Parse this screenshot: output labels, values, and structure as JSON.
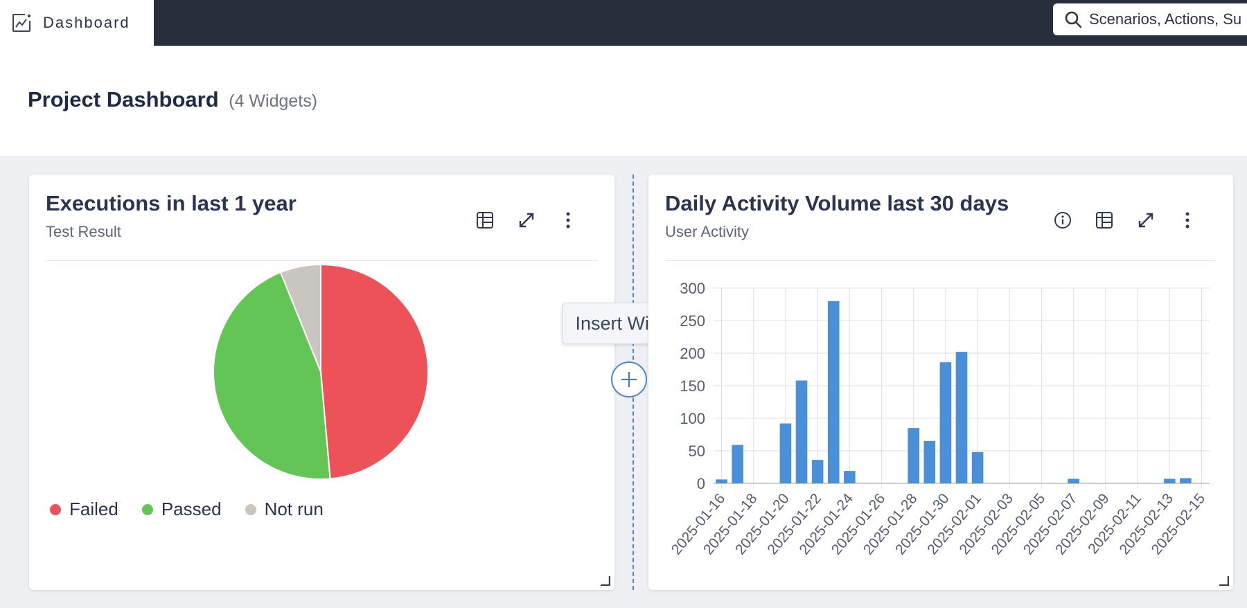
{
  "topbar": {
    "brand_label": "Dashboard",
    "brand_icon": "chart-line-icon",
    "search_placeholder": "Scenarios, Actions, Su"
  },
  "header": {
    "title": "Project Dashboard",
    "widget_count": "(4 Widgets)"
  },
  "widgets": [
    {
      "title": "Executions in last 1 year",
      "subtitle": "Test Result",
      "actions": [
        "table-icon",
        "expand-icon",
        "more-vertical-icon"
      ]
    },
    {
      "title": "Daily Activity Volume last 30 days",
      "subtitle": "User Activity",
      "actions": [
        "info-icon",
        "table-icon",
        "expand-icon",
        "more-vertical-icon"
      ]
    }
  ],
  "insert_widget": {
    "tooltip": "Insert Widget"
  },
  "colors": {
    "failed": "#ec5257",
    "passed": "#62c555",
    "not_run": "#c9c6c1",
    "bar": "#4a90d9",
    "accent": "#4a84d8"
  },
  "chart_data": [
    {
      "type": "pie",
      "legend": [
        "Failed",
        "Passed",
        "Not run"
      ],
      "series": [
        {
          "name": "Failed",
          "value": 48.6
        },
        {
          "name": "Passed",
          "value": 45.3
        },
        {
          "name": "Not run",
          "value": 6.1
        }
      ],
      "legend_position": "bottom-left"
    },
    {
      "type": "bar",
      "categories": [
        "2025-01-16",
        "2025-01-17",
        "2025-01-18",
        "2025-01-19",
        "2025-01-20",
        "2025-01-21",
        "2025-01-22",
        "2025-01-23",
        "2025-01-24",
        "2025-01-25",
        "2025-01-26",
        "2025-01-27",
        "2025-01-28",
        "2025-01-29",
        "2025-01-30",
        "2025-01-31",
        "2025-02-01",
        "2025-02-02",
        "2025-02-03",
        "2025-02-04",
        "2025-02-05",
        "2025-02-06",
        "2025-02-07",
        "2025-02-08",
        "2025-02-09",
        "2025-02-10",
        "2025-02-11",
        "2025-02-12",
        "2025-02-13",
        "2025-02-14",
        "2025-02-15"
      ],
      "values": [
        6,
        59,
        0,
        0,
        92,
        158,
        36,
        280,
        19,
        0,
        0,
        0,
        85,
        65,
        186,
        202,
        48,
        0,
        0,
        0,
        0,
        0,
        7,
        0,
        0,
        0,
        0,
        0,
        7,
        8,
        0
      ],
      "tick_labels": [
        "2025-01-16",
        "2025-01-18",
        "2025-01-20",
        "2025-01-22",
        "2025-01-24",
        "2025-01-26",
        "2025-01-28",
        "2025-01-30",
        "2025-02-01",
        "2025-02-03",
        "2025-02-05",
        "2025-02-07",
        "2025-02-09",
        "2025-02-11",
        "2025-02-13",
        "2025-02-15"
      ],
      "yticks": [
        0,
        50,
        100,
        150,
        200,
        250,
        300
      ],
      "ylim": [
        0,
        300
      ],
      "grid": true
    }
  ]
}
